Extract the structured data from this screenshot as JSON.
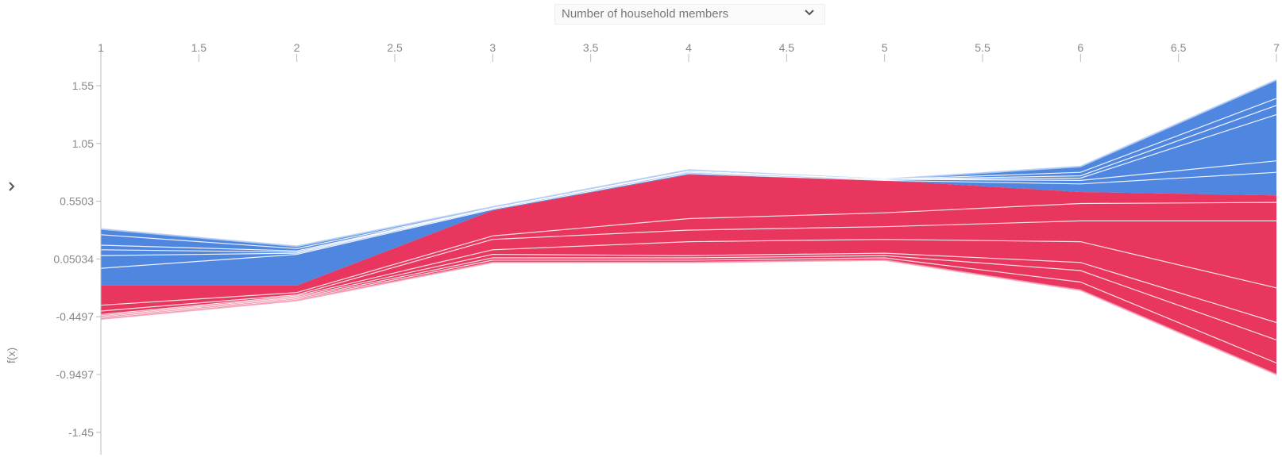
{
  "feature_selector": {
    "value": "Number of household members",
    "icon": "chevron-down-icon"
  },
  "expand_toggle": {
    "icon": "chevron-right-icon"
  },
  "chart_data": {
    "type": "area",
    "title": "",
    "xlabel": "",
    "ylabel": "f(x)",
    "x_axis_position": "top",
    "xlim": [
      1,
      7
    ],
    "ylim": [
      -1.6,
      1.75
    ],
    "x_ticks": [
      "1",
      "1.5",
      "2",
      "2.5",
      "3",
      "3.5",
      "4",
      "4.5",
      "5",
      "5.5",
      "6",
      "6.5",
      "7"
    ],
    "y_ticks": [
      {
        "value": 1.55,
        "label": "1.55"
      },
      {
        "value": 1.05,
        "label": "1.05"
      },
      {
        "value": 0.5503,
        "label": "0.5503"
      },
      {
        "value": 0.05034,
        "label": "0.05034"
      },
      {
        "value": -0.4497,
        "label": "-0.4497"
      },
      {
        "value": -0.9497,
        "label": "-0.9497"
      },
      {
        "value": -1.45,
        "label": "-1.45"
      }
    ],
    "grid": false,
    "legend": "none",
    "colors": {
      "positive": "#e8365e",
      "negative": "#4f86e0",
      "separator": "#ffffff",
      "edge_positive": "#f4a7bd",
      "edge_negative": "#b3cdf5"
    },
    "x": [
      1,
      2,
      3,
      4,
      5,
      6,
      7
    ],
    "boundary": [
      -0.18,
      -0.18,
      0.47,
      0.78,
      0.73,
      0.63,
      0.6
    ],
    "negative_series_top": [
      [
        0.31,
        0.16,
        0.5,
        0.82,
        0.74,
        0.85,
        1.6
      ],
      [
        0.26,
        0.14,
        0.49,
        0.81,
        0.74,
        0.8,
        1.44
      ],
      [
        0.17,
        0.12,
        0.49,
        0.81,
        0.74,
        0.77,
        1.38
      ],
      [
        0.13,
        0.11,
        0.49,
        0.81,
        0.74,
        0.75,
        1.3
      ],
      [
        0.08,
        0.1,
        0.49,
        0.8,
        0.74,
        0.73,
        0.9
      ],
      [
        -0.03,
        0.09,
        0.48,
        0.79,
        0.73,
        0.7,
        0.8
      ]
    ],
    "positive_series_bottom": [
      [
        -0.35,
        -0.24,
        0.25,
        0.4,
        0.45,
        0.53,
        0.54
      ],
      [
        -0.4,
        -0.26,
        0.22,
        0.3,
        0.33,
        0.38,
        0.38
      ],
      [
        -0.43,
        -0.27,
        0.13,
        0.2,
        0.22,
        0.2,
        -0.2
      ],
      [
        -0.44,
        -0.28,
        0.09,
        0.08,
        0.1,
        0.02,
        -0.5
      ],
      [
        -0.45,
        -0.29,
        0.06,
        0.06,
        0.08,
        -0.05,
        -0.65
      ],
      [
        -0.46,
        -0.3,
        0.04,
        0.04,
        0.06,
        -0.15,
        -0.85
      ],
      [
        -0.47,
        -0.31,
        0.02,
        0.02,
        0.04,
        -0.22,
        -0.95
      ]
    ]
  }
}
